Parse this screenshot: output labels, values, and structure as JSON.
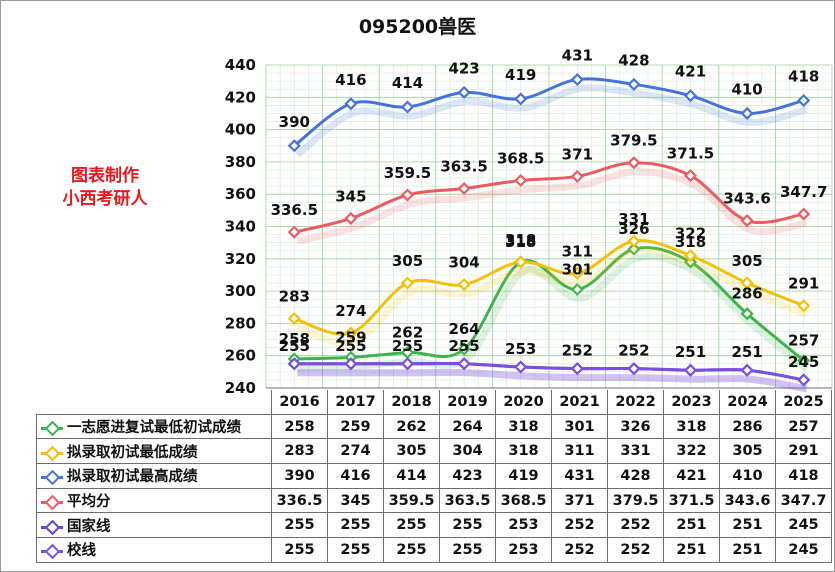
{
  "chart_data": {
    "type": "line",
    "title": "095200兽医",
    "x": [
      "2016",
      "2017",
      "2018",
      "2019",
      "2020",
      "2021",
      "2022",
      "2023",
      "2024",
      "2025"
    ],
    "ylim": [
      240,
      440
    ],
    "yticks": [
      240,
      260,
      280,
      300,
      320,
      340,
      360,
      380,
      400,
      420,
      440
    ],
    "ytick_labels": [
      "240",
      "260",
      "280",
      "300",
      "320",
      "340",
      "360",
      "380",
      "400",
      "420",
      "440"
    ],
    "grid": true,
    "legend": "data-table",
    "series": [
      {
        "name": "一志愿进复试最低初试成绩",
        "color": "#3cb44b",
        "values": [
          258,
          259,
          262,
          264,
          318,
          301,
          326,
          318,
          286,
          257
        ],
        "labels": [
          "258",
          "259",
          "262",
          "264",
          "318",
          "301",
          "326",
          "318",
          "286",
          "257"
        ]
      },
      {
        "name": "拟录取初试最低成绩",
        "color": "#f5c000",
        "values": [
          283,
          274,
          305,
          304,
          318,
          311,
          331,
          322,
          305,
          291
        ],
        "labels": [
          "283",
          "274",
          "305",
          "304",
          "318",
          "311",
          "331",
          "322",
          "305",
          "291"
        ]
      },
      {
        "name": "拟录取初试最高成绩",
        "color": "#4472e0",
        "values": [
          390,
          416,
          414,
          423,
          419,
          431,
          428,
          421,
          410,
          418
        ],
        "labels": [
          "390",
          "416",
          "414",
          "423",
          "419",
          "431",
          "428",
          "421",
          "410",
          "418"
        ]
      },
      {
        "name": "平均分",
        "color": "#ec5b62",
        "values": [
          336.5,
          345,
          359.5,
          363.5,
          368.5,
          371,
          379.5,
          371.5,
          343.6,
          347.7
        ],
        "labels": [
          "336.5",
          "345",
          "359.5",
          "363.5",
          "368.5",
          "371",
          "379.5",
          "371.5",
          "343.6",
          "347.7"
        ]
      },
      {
        "name": "国家线",
        "color": "#6a3fd6",
        "values": [
          255,
          255,
          255,
          255,
          253,
          252,
          252,
          251,
          251,
          245
        ],
        "labels": [
          "255",
          "255",
          "255",
          "255",
          "253",
          "252",
          "252",
          "251",
          "251",
          "245"
        ]
      },
      {
        "name": "校线",
        "color": "#7a4fe0",
        "values": [
          255,
          255,
          255,
          255,
          253,
          252,
          252,
          251,
          251,
          245
        ],
        "labels": [
          "255",
          "255",
          "255",
          "255",
          "253",
          "252",
          "252",
          "251",
          "251",
          "245"
        ]
      }
    ]
  },
  "watermark": {
    "line1": "图表制作",
    "line2": "小西考研人"
  }
}
